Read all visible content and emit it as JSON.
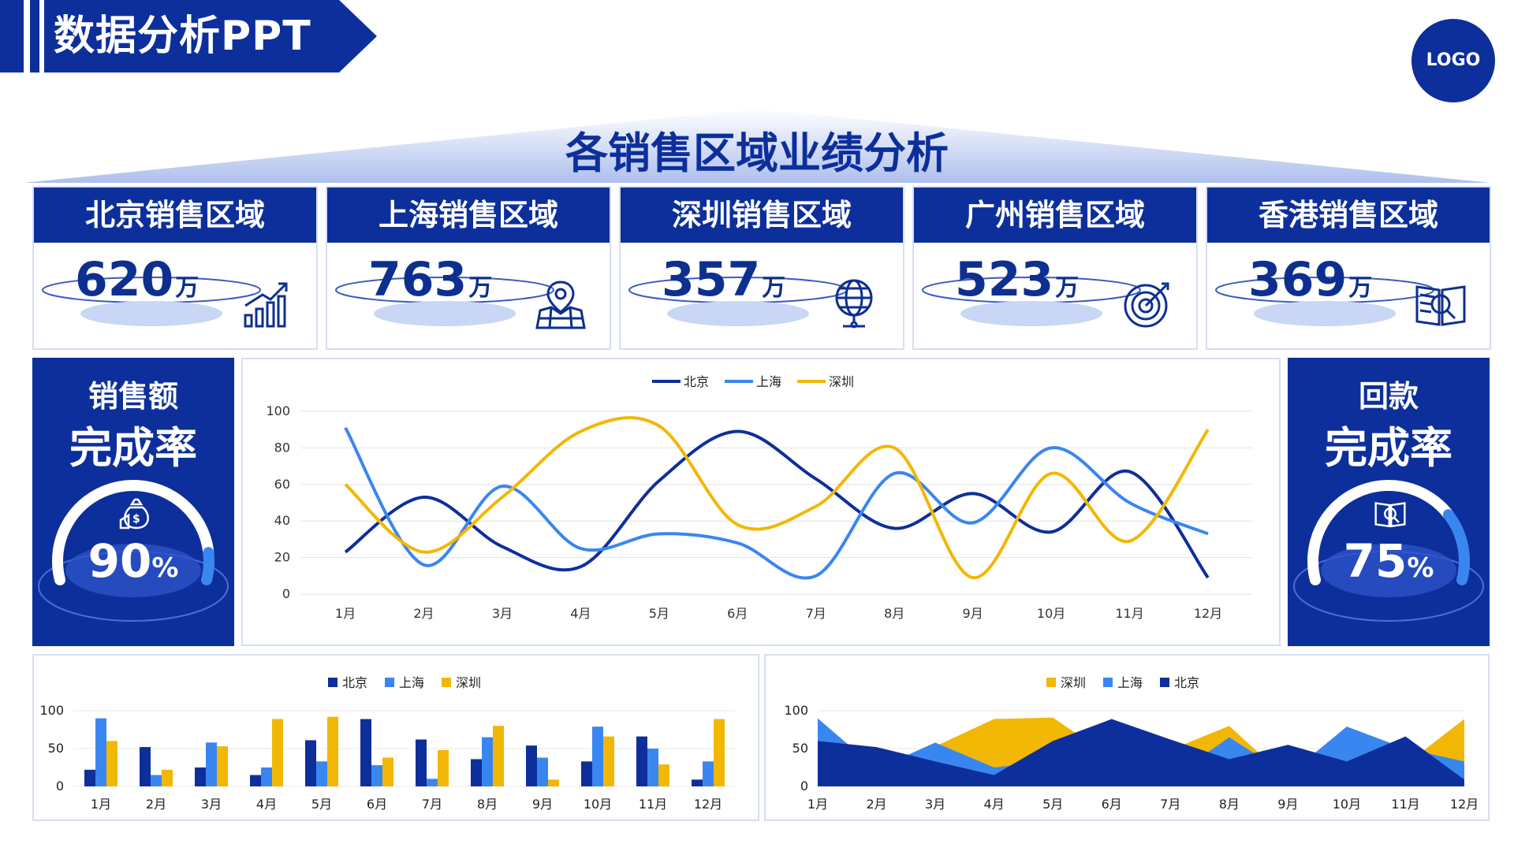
{
  "page_title": "数据分析PPT",
  "logo_text": "LOGO",
  "section_title": "各销售区域业绩分析",
  "colors": {
    "navy": "#0d2f9b",
    "blue": "#3a86f0",
    "yellow": "#f2b705",
    "light_blue": "#eef3ff"
  },
  "regions": [
    {
      "name": "北京销售区域",
      "value": "620",
      "unit": "万",
      "icon": "growth-chart-icon"
    },
    {
      "name": "上海销售区域",
      "value": "763",
      "unit": "万",
      "icon": "map-pin-icon"
    },
    {
      "name": "深圳销售区域",
      "value": "357",
      "unit": "万",
      "icon": "globe-icon"
    },
    {
      "name": "广州销售区域",
      "value": "523",
      "unit": "万",
      "icon": "target-icon"
    },
    {
      "name": "香港销售区域",
      "value": "369",
      "unit": "万",
      "icon": "book-search-icon"
    }
  ],
  "sales_completion": {
    "label1": "销售额",
    "label2": "完成率",
    "value": "90",
    "unit": "%",
    "progress": 0.9,
    "icon": "money-bag-icon"
  },
  "payment_completion": {
    "label1": "回款",
    "label2": "完成率",
    "value": "75",
    "unit": "%",
    "progress": 0.75,
    "icon": "book-search-icon"
  },
  "chart_data": [
    {
      "type": "line",
      "categories": [
        "1月",
        "2月",
        "3月",
        "4月",
        "5月",
        "6月",
        "7月",
        "8月",
        "9月",
        "10月",
        "11月",
        "12月"
      ],
      "series": [
        {
          "name": "北京",
          "values": [
            23,
            53,
            26,
            15,
            62,
            89,
            63,
            36,
            55,
            34,
            67,
            9
          ]
        },
        {
          "name": "上海",
          "values": [
            91,
            16,
            59,
            25,
            33,
            28,
            10,
            66,
            39,
            80,
            50,
            33
          ]
        },
        {
          "name": "深圳",
          "values": [
            60,
            23,
            53,
            89,
            92,
            38,
            48,
            80,
            9,
            66,
            29,
            90
          ]
        }
      ],
      "ylim": [
        0,
        100
      ],
      "yticks": [
        0,
        20,
        40,
        60,
        80,
        100
      ],
      "legend": "top-center",
      "grid": true
    },
    {
      "type": "bar",
      "categories": [
        "1月",
        "2月",
        "3月",
        "4月",
        "5月",
        "6月",
        "7月",
        "8月",
        "9月",
        "10月",
        "11月",
        "12月"
      ],
      "series": [
        {
          "name": "北京",
          "values": [
            22,
            52,
            25,
            15,
            61,
            89,
            62,
            36,
            54,
            33,
            66,
            9
          ]
        },
        {
          "name": "上海",
          "values": [
            90,
            15,
            58,
            25,
            33,
            28,
            10,
            65,
            38,
            79,
            50,
            33
          ]
        },
        {
          "name": "深圳",
          "values": [
            60,
            22,
            53,
            89,
            92,
            38,
            48,
            80,
            9,
            66,
            29,
            89
          ]
        }
      ],
      "ylim": [
        0,
        100
      ],
      "yticks": [
        0,
        50,
        100
      ],
      "legend": "top-center"
    },
    {
      "type": "area",
      "categories": [
        "1月",
        "2月",
        "3月",
        "4月",
        "5月",
        "6月",
        "7月",
        "8月",
        "9月",
        "10月",
        "11月",
        "12月"
      ],
      "series": [
        {
          "name": "北京",
          "values": [
            60,
            52,
            33,
            15,
            60,
            89,
            62,
            36,
            55,
            33,
            66,
            9
          ]
        },
        {
          "name": "上海",
          "values": [
            90,
            23,
            58,
            25,
            33,
            28,
            10,
            65,
            15,
            79,
            50,
            33
          ]
        },
        {
          "name": "深圳",
          "values": [
            60,
            23,
            53,
            89,
            91,
            38,
            48,
            80,
            9,
            66,
            29,
            89
          ]
        }
      ],
      "ylim": [
        0,
        100
      ],
      "yticks": [
        0,
        50,
        100
      ],
      "legend": "top-center"
    }
  ]
}
